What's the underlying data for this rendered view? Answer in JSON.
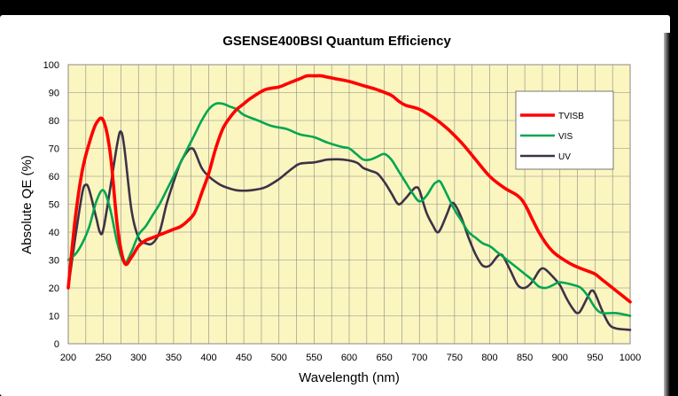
{
  "chart_data": {
    "type": "line",
    "title": "GSENSE400BSI Quantum Efficiency",
    "xlabel": "Wavelength (nm)",
    "ylabel": "Absolute QE (%)",
    "xlim": [
      200,
      1000
    ],
    "ylim": [
      0,
      100
    ],
    "x_ticks": [
      "200",
      "250",
      "300",
      "350",
      "400",
      "450",
      "500",
      "550",
      "600",
      "650",
      "700",
      "750",
      "800",
      "850",
      "900",
      "950",
      "1000"
    ],
    "y_ticks": [
      "0",
      "10",
      "20",
      "30",
      "40",
      "50",
      "60",
      "70",
      "80",
      "90",
      "100"
    ],
    "grid": true,
    "legend_position": "top-right",
    "background_color": "#fbf6bf",
    "series": [
      {
        "name": "TVISB",
        "color": "#ff0000",
        "points": [
          [
            200,
            20
          ],
          [
            210,
            45
          ],
          [
            220,
            62
          ],
          [
            230,
            72
          ],
          [
            240,
            79
          ],
          [
            250,
            80
          ],
          [
            260,
            68
          ],
          [
            270,
            42
          ],
          [
            280,
            29
          ],
          [
            290,
            31
          ],
          [
            300,
            35
          ],
          [
            310,
            37
          ],
          [
            320,
            38
          ],
          [
            330,
            39
          ],
          [
            340,
            40
          ],
          [
            350,
            41
          ],
          [
            360,
            42
          ],
          [
            370,
            44
          ],
          [
            380,
            47
          ],
          [
            390,
            54
          ],
          [
            400,
            61
          ],
          [
            410,
            70
          ],
          [
            420,
            77
          ],
          [
            430,
            81
          ],
          [
            440,
            84
          ],
          [
            450,
            86
          ],
          [
            460,
            88
          ],
          [
            480,
            91
          ],
          [
            500,
            92
          ],
          [
            510,
            93
          ],
          [
            520,
            94
          ],
          [
            530,
            95
          ],
          [
            540,
            96
          ],
          [
            550,
            96
          ],
          [
            560,
            96
          ],
          [
            570,
            95.5
          ],
          [
            580,
            95
          ],
          [
            600,
            94
          ],
          [
            620,
            92.5
          ],
          [
            640,
            91
          ],
          [
            660,
            89
          ],
          [
            670,
            87
          ],
          [
            680,
            85.5
          ],
          [
            700,
            84
          ],
          [
            720,
            81
          ],
          [
            740,
            77
          ],
          [
            760,
            72
          ],
          [
            780,
            66
          ],
          [
            800,
            60
          ],
          [
            820,
            56
          ],
          [
            840,
            53
          ],
          [
            850,
            50
          ],
          [
            860,
            45
          ],
          [
            870,
            40
          ],
          [
            880,
            36
          ],
          [
            890,
            33
          ],
          [
            900,
            31
          ],
          [
            920,
            28
          ],
          [
            940,
            26
          ],
          [
            950,
            25
          ],
          [
            960,
            23
          ],
          [
            980,
            19
          ],
          [
            1000,
            15
          ]
        ]
      },
      {
        "name": "VIS",
        "color": "#00a651",
        "points": [
          [
            200,
            30
          ],
          [
            210,
            32
          ],
          [
            220,
            36
          ],
          [
            230,
            42
          ],
          [
            240,
            51
          ],
          [
            250,
            55
          ],
          [
            260,
            48
          ],
          [
            270,
            36
          ],
          [
            280,
            29
          ],
          [
            290,
            33
          ],
          [
            300,
            39
          ],
          [
            310,
            42
          ],
          [
            320,
            46
          ],
          [
            330,
            50
          ],
          [
            340,
            55
          ],
          [
            350,
            60
          ],
          [
            360,
            65
          ],
          [
            370,
            70
          ],
          [
            380,
            75
          ],
          [
            390,
            80
          ],
          [
            400,
            84
          ],
          [
            410,
            86
          ],
          [
            420,
            86
          ],
          [
            430,
            85
          ],
          [
            440,
            84
          ],
          [
            450,
            82
          ],
          [
            470,
            80
          ],
          [
            490,
            78
          ],
          [
            510,
            77
          ],
          [
            530,
            75
          ],
          [
            550,
            74
          ],
          [
            570,
            72
          ],
          [
            590,
            70.5
          ],
          [
            600,
            70
          ],
          [
            610,
            68
          ],
          [
            620,
            66
          ],
          [
            630,
            66
          ],
          [
            640,
            67
          ],
          [
            650,
            68
          ],
          [
            660,
            66
          ],
          [
            670,
            62
          ],
          [
            680,
            58
          ],
          [
            690,
            54
          ],
          [
            700,
            51
          ],
          [
            710,
            53
          ],
          [
            720,
            57
          ],
          [
            725,
            58
          ],
          [
            730,
            58
          ],
          [
            740,
            53
          ],
          [
            750,
            48
          ],
          [
            760,
            44
          ],
          [
            770,
            40
          ],
          [
            780,
            38
          ],
          [
            790,
            36
          ],
          [
            800,
            35
          ],
          [
            810,
            33
          ],
          [
            820,
            31
          ],
          [
            840,
            27
          ],
          [
            850,
            25
          ],
          [
            860,
            23
          ],
          [
            870,
            20.5
          ],
          [
            880,
            20
          ],
          [
            890,
            21
          ],
          [
            900,
            22
          ],
          [
            920,
            21
          ],
          [
            930,
            20
          ],
          [
            940,
            17
          ],
          [
            950,
            13
          ],
          [
            960,
            11
          ],
          [
            980,
            11
          ],
          [
            1000,
            10
          ]
        ]
      },
      {
        "name": "UV",
        "color": "#3d3248",
        "points": [
          [
            200,
            20
          ],
          [
            210,
            38
          ],
          [
            220,
            54
          ],
          [
            225,
            57
          ],
          [
            230,
            55
          ],
          [
            240,
            45
          ],
          [
            245,
            40
          ],
          [
            250,
            41
          ],
          [
            260,
            56
          ],
          [
            270,
            72
          ],
          [
            275,
            76
          ],
          [
            280,
            70
          ],
          [
            290,
            48
          ],
          [
            300,
            38
          ],
          [
            310,
            36
          ],
          [
            320,
            36
          ],
          [
            330,
            40
          ],
          [
            340,
            50
          ],
          [
            350,
            58
          ],
          [
            360,
            65
          ],
          [
            370,
            69
          ],
          [
            375,
            70
          ],
          [
            380,
            69
          ],
          [
            390,
            63
          ],
          [
            400,
            60
          ],
          [
            410,
            58
          ],
          [
            420,
            56.5
          ],
          [
            440,
            55
          ],
          [
            460,
            55
          ],
          [
            480,
            56
          ],
          [
            500,
            59
          ],
          [
            510,
            61
          ],
          [
            520,
            63
          ],
          [
            530,
            64.5
          ],
          [
            550,
            65
          ],
          [
            560,
            65.5
          ],
          [
            570,
            66
          ],
          [
            590,
            66
          ],
          [
            610,
            65
          ],
          [
            620,
            63
          ],
          [
            630,
            62
          ],
          [
            640,
            61
          ],
          [
            650,
            58
          ],
          [
            660,
            54
          ],
          [
            670,
            50
          ],
          [
            680,
            52
          ],
          [
            690,
            55
          ],
          [
            695,
            56
          ],
          [
            700,
            55
          ],
          [
            710,
            47
          ],
          [
            720,
            42
          ],
          [
            725,
            40
          ],
          [
            730,
            41
          ],
          [
            740,
            47
          ],
          [
            745,
            50
          ],
          [
            750,
            50
          ],
          [
            760,
            45
          ],
          [
            770,
            38
          ],
          [
            780,
            32
          ],
          [
            790,
            28
          ],
          [
            800,
            28
          ],
          [
            810,
            31
          ],
          [
            815,
            32
          ],
          [
            820,
            31
          ],
          [
            830,
            26
          ],
          [
            840,
            21
          ],
          [
            850,
            20
          ],
          [
            860,
            22
          ],
          [
            870,
            26
          ],
          [
            875,
            27
          ],
          [
            880,
            26.5
          ],
          [
            890,
            24
          ],
          [
            900,
            21
          ],
          [
            910,
            16
          ],
          [
            920,
            12
          ],
          [
            925,
            11
          ],
          [
            930,
            12
          ],
          [
            940,
            17
          ],
          [
            945,
            19
          ],
          [
            950,
            18
          ],
          [
            960,
            12
          ],
          [
            970,
            7
          ],
          [
            980,
            5.5
          ],
          [
            1000,
            5
          ]
        ]
      }
    ]
  }
}
